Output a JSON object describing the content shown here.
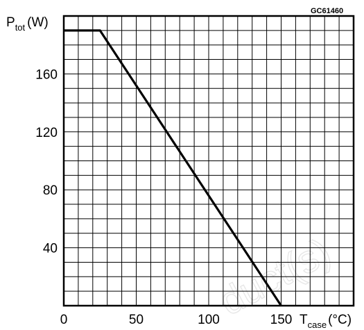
{
  "chart_data": {
    "type": "line",
    "figure_code": "GC61460",
    "y_axis_label": {
      "symbol": "P",
      "subscript": "tot",
      "unit": "(W)"
    },
    "x_axis_label": {
      "symbol": "T",
      "subscript": "case",
      "unit": "(°C)"
    },
    "xlim": [
      0,
      200
    ],
    "ylim": [
      0,
      200
    ],
    "x_ticks": [
      0,
      50,
      100,
      150
    ],
    "x_tick_labels": [
      "0",
      "50",
      "100",
      "150"
    ],
    "y_ticks": [
      40,
      80,
      120,
      160
    ],
    "y_tick_labels": [
      "40",
      "80",
      "120",
      "160"
    ],
    "grid": true,
    "grid_step": 10,
    "series": [
      {
        "x": [
          0,
          25,
          150
        ],
        "y": [
          190,
          190,
          0
        ]
      }
    ],
    "watermark": "duct(s)",
    "colors": {
      "line": "#000000",
      "grid": "#000000",
      "background": "#ffffff"
    }
  }
}
